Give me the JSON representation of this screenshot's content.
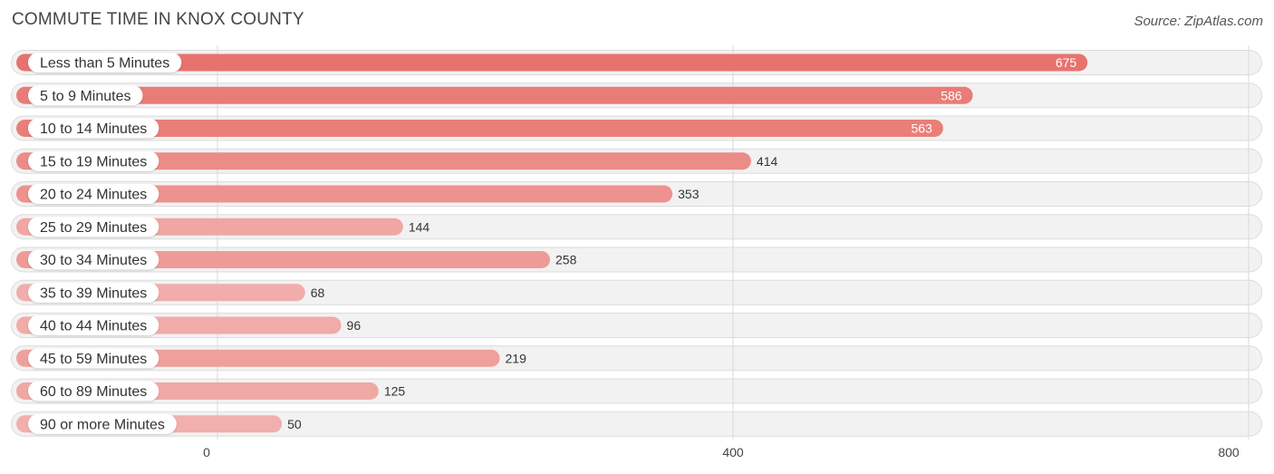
{
  "header": {
    "title": "COMMUTE TIME IN KNOX COUNTY",
    "source": "Source: ZipAtlas.com"
  },
  "chart_data": {
    "type": "bar",
    "orientation": "horizontal",
    "title": "COMMUTE TIME IN KNOX COUNTY",
    "xlabel": "",
    "ylabel": "",
    "categories": [
      "Less than 5 Minutes",
      "5 to 9 Minutes",
      "10 to 14 Minutes",
      "15 to 19 Minutes",
      "20 to 24 Minutes",
      "25 to 29 Minutes",
      "30 to 34 Minutes",
      "35 to 39 Minutes",
      "40 to 44 Minutes",
      "45 to 59 Minutes",
      "60 to 89 Minutes",
      "90 or more Minutes"
    ],
    "values": [
      675,
      586,
      563,
      414,
      353,
      144,
      258,
      68,
      96,
      219,
      125,
      50
    ],
    "xlim": [
      0,
      800
    ],
    "xticks": [
      0,
      400,
      800
    ],
    "grid": true,
    "colors": {
      "bar_strong": "#e8736e",
      "bar_light": "#f2b4b2",
      "value_inside": "#ffffff",
      "value_outside": "#333333"
    }
  }
}
